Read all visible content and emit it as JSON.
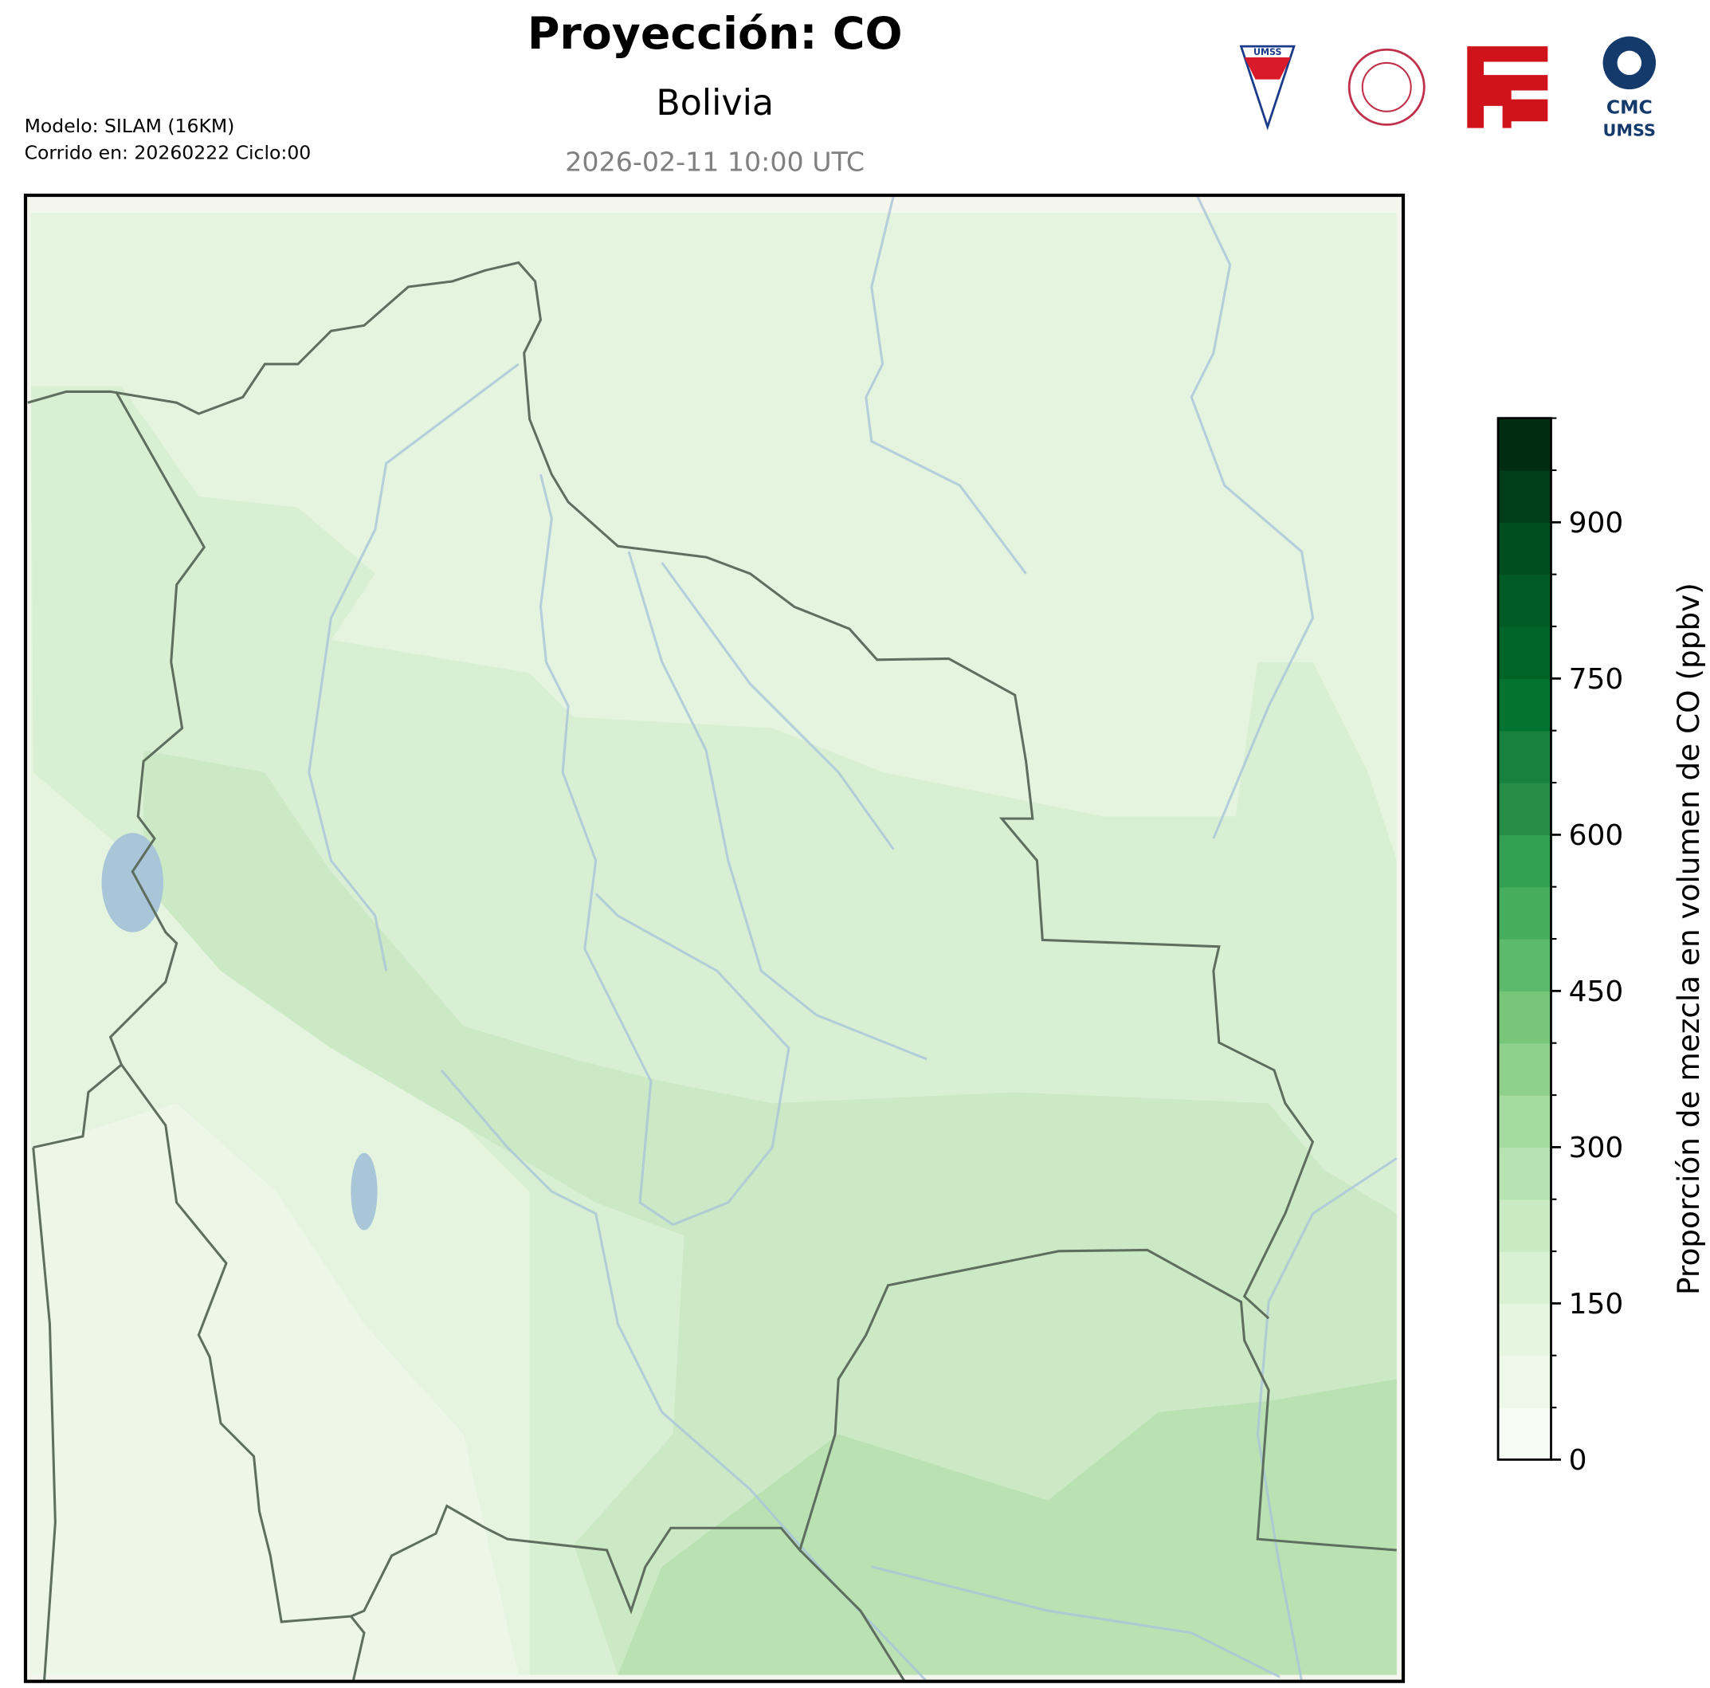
{
  "header": {
    "title": "Proyección: CO",
    "subtitle": "Bolivia",
    "date": "2026-02-11 10:00 UTC",
    "model": "Modelo: SILAM (16KM)",
    "run": "Corrido en: 20260222 Ciclo:00"
  },
  "logos": {
    "umss": "UMSS",
    "cmc": "CMC",
    "cmc_sub": "UMSS"
  },
  "colorbar": {
    "label": "Proporción de mezcla en volumen de CO (ppbv)",
    "lim": [
      0,
      1000
    ],
    "ticks": [
      0,
      150,
      300,
      450,
      600,
      750,
      900
    ],
    "levels": [
      0,
      50,
      100,
      150,
      200,
      250,
      300,
      350,
      400,
      450,
      500,
      550,
      600,
      650,
      700,
      750,
      800,
      850,
      900,
      950,
      1000
    ],
    "colors": [
      "#f7fcf5",
      "#eef8ea",
      "#e5f5e0",
      "#d9f0d3",
      "#c9eac2",
      "#b7e2b1",
      "#a5db9f",
      "#8ed08b",
      "#77c679",
      "#5db96b",
      "#46ad5f",
      "#34a052",
      "#268e47",
      "#17813d",
      "#037332",
      "#006428",
      "#005a24",
      "#004d1f",
      "#003d18",
      "#002d12"
    ]
  }
}
